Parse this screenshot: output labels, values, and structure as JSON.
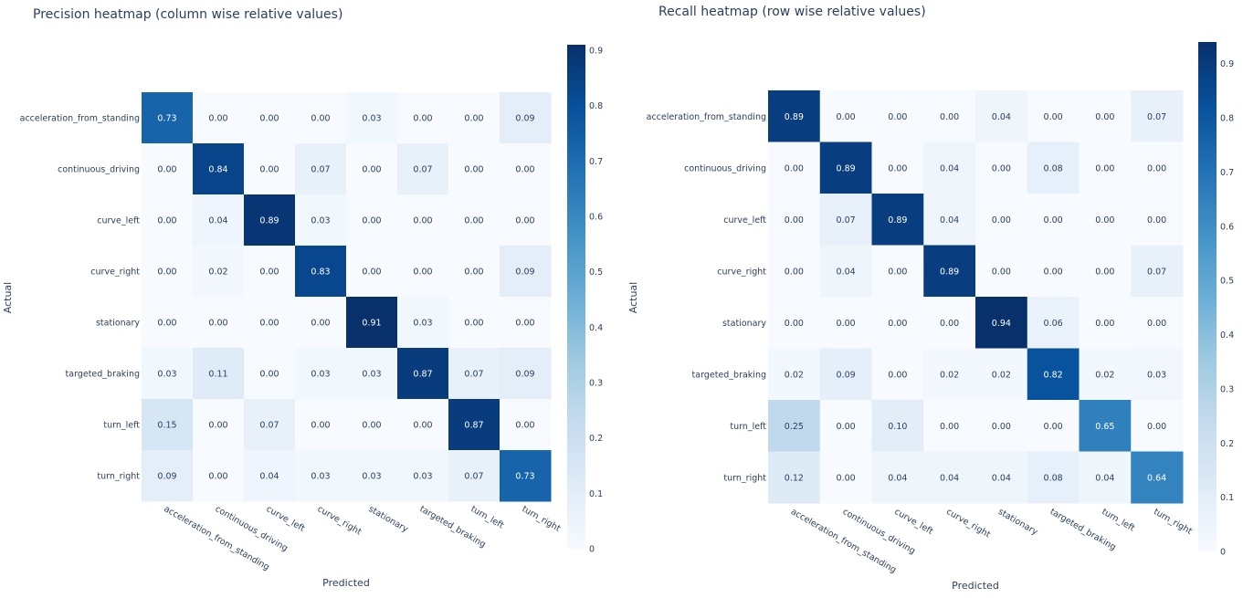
{
  "chart_data": [
    {
      "type": "heatmap",
      "title": "Precision heatmap (column wise relative values)",
      "xlabel": "Predicted",
      "ylabel": "Actual",
      "x_categories": [
        "acceleration_from_standing",
        "continuous_driving",
        "curve_left",
        "curve_right",
        "stationary",
        "targeted_braking",
        "turn_left",
        "turn_right"
      ],
      "y_categories": [
        "acceleration_from_standing",
        "continuous_driving",
        "curve_left",
        "curve_right",
        "stationary",
        "targeted_braking",
        "turn_left",
        "turn_right"
      ],
      "values": [
        [
          0.73,
          0.0,
          0.0,
          0.0,
          0.03,
          0.0,
          0.0,
          0.09
        ],
        [
          0.0,
          0.84,
          0.0,
          0.07,
          0.0,
          0.07,
          0.0,
          0.0
        ],
        [
          0.0,
          0.04,
          0.89,
          0.03,
          0.0,
          0.0,
          0.0,
          0.0
        ],
        [
          0.0,
          0.02,
          0.0,
          0.83,
          0.0,
          0.0,
          0.0,
          0.09
        ],
        [
          0.0,
          0.0,
          0.0,
          0.0,
          0.91,
          0.03,
          0.0,
          0.0
        ],
        [
          0.03,
          0.11,
          0.0,
          0.03,
          0.03,
          0.87,
          0.07,
          0.09
        ],
        [
          0.15,
          0.0,
          0.07,
          0.0,
          0.0,
          0.0,
          0.87,
          0.0
        ],
        [
          0.09,
          0.0,
          0.04,
          0.03,
          0.03,
          0.03,
          0.07,
          0.73
        ]
      ],
      "zmax": 0.91,
      "colorscale": "Blues",
      "colorbar_ticks": [
        "0",
        "0.1",
        "0.2",
        "0.3",
        "0.4",
        "0.5",
        "0.6",
        "0.7",
        "0.8",
        "0.9"
      ]
    },
    {
      "type": "heatmap",
      "title": "Recall heatmap (row wise relative values)",
      "xlabel": "Predicted",
      "ylabel": "Actual",
      "x_categories": [
        "acceleration_from_standing",
        "continuous_driving",
        "curve_left",
        "curve_right",
        "stationary",
        "targeted_braking",
        "turn_left",
        "turn_right"
      ],
      "y_categories": [
        "acceleration_from_standing",
        "continuous_driving",
        "curve_left",
        "curve_right",
        "stationary",
        "targeted_braking",
        "turn_left",
        "turn_right"
      ],
      "values": [
        [
          0.89,
          0.0,
          0.0,
          0.0,
          0.04,
          0.0,
          0.0,
          0.07
        ],
        [
          0.0,
          0.89,
          0.0,
          0.04,
          0.0,
          0.08,
          0.0,
          0.0
        ],
        [
          0.0,
          0.07,
          0.89,
          0.04,
          0.0,
          0.0,
          0.0,
          0.0
        ],
        [
          0.0,
          0.04,
          0.0,
          0.89,
          0.0,
          0.0,
          0.0,
          0.07
        ],
        [
          0.0,
          0.0,
          0.0,
          0.0,
          0.94,
          0.06,
          0.0,
          0.0
        ],
        [
          0.02,
          0.09,
          0.0,
          0.02,
          0.02,
          0.82,
          0.02,
          0.03
        ],
        [
          0.25,
          0.0,
          0.1,
          0.0,
          0.0,
          0.0,
          0.65,
          0.0
        ],
        [
          0.12,
          0.0,
          0.04,
          0.04,
          0.04,
          0.08,
          0.04,
          0.64
        ]
      ],
      "zmax": 0.94,
      "colorscale": "Blues",
      "colorbar_ticks": [
        "0",
        "0.1",
        "0.2",
        "0.3",
        "0.4",
        "0.5",
        "0.6",
        "0.7",
        "0.8",
        "0.9"
      ]
    }
  ]
}
